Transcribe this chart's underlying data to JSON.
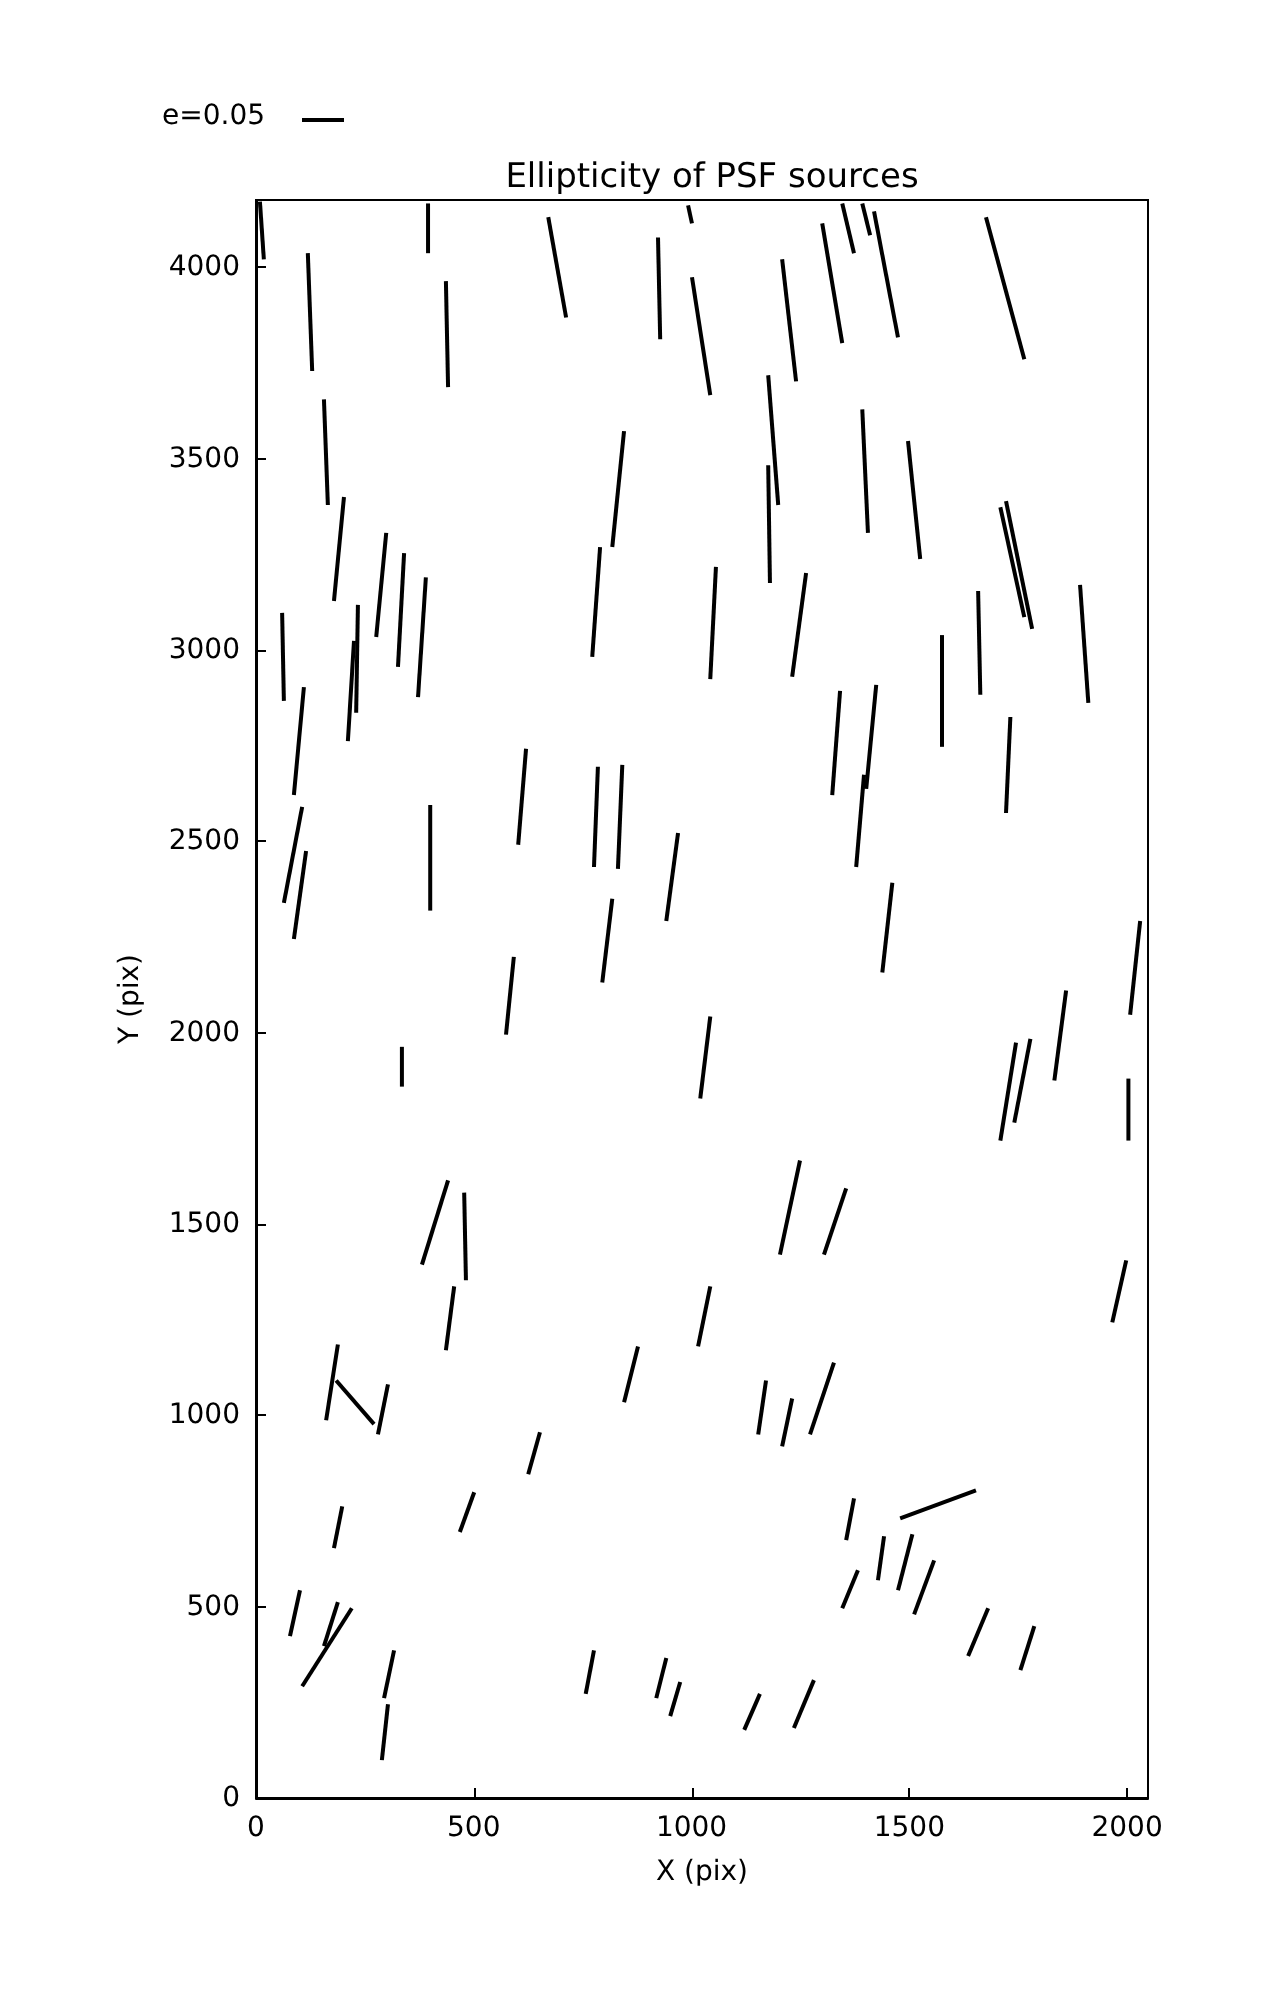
{
  "chart_data": {
    "type": "line",
    "title": "Ellipticity of PSF sources",
    "xlabel": "X (pix)",
    "ylabel": "Y (pix)",
    "annotations": [
      "e=0.05"
    ],
    "xlim": [
      0,
      2048
    ],
    "xticks": [
      0,
      500,
      1000,
      1500,
      2000
    ],
    "ylim": [
      0,
      4176
    ],
    "yticks": [
      0,
      500,
      1000,
      1500,
      2000,
      2500,
      3000,
      3500,
      4000
    ],
    "grid": false,
    "marker": "none",
    "line_style": "solid",
    "series": [
      {
        "color": "#000000",
        "x": [
          9,
          18
        ],
        "values": [
          4172,
          4021
        ]
      },
      {
        "color": "#000000",
        "x": [
          395,
          395
        ],
        "values": [
          4167,
          4037
        ]
      },
      {
        "color": "#000000",
        "x": [
          992,
          1001
        ],
        "values": [
          4162,
          4115
        ]
      },
      {
        "color": "#000000",
        "x": [
          671,
          712
        ],
        "values": [
          4131,
          3869
        ]
      },
      {
        "color": "#000000",
        "x": [
          923,
          928
        ],
        "values": [
          4078,
          3812
        ]
      },
      {
        "color": "#000000",
        "x": [
          1346,
          1373
        ],
        "values": [
          4167,
          4037
        ]
      },
      {
        "color": "#000000",
        "x": [
          1392,
          1410
        ],
        "values": [
          4167,
          4084
        ]
      },
      {
        "color": "#000000",
        "x": [
          1419,
          1474
        ],
        "values": [
          4146,
          3817
        ]
      },
      {
        "color": "#000000",
        "x": [
          1300,
          1346
        ],
        "values": [
          4115,
          3802
        ]
      },
      {
        "color": "#000000",
        "x": [
          1676,
          1764
        ],
        "values": [
          4131,
          3760
        ]
      },
      {
        "color": "#000000",
        "x": [
          119,
          129
        ],
        "values": [
          4037,
          3729
        ]
      },
      {
        "color": "#000000",
        "x": [
          436,
          441
        ],
        "values": [
          3964,
          3687
        ]
      },
      {
        "color": "#000000",
        "x": [
          1001,
          1043
        ],
        "values": [
          3974,
          3666
        ]
      },
      {
        "color": "#000000",
        "x": [
          1208,
          1240
        ],
        "values": [
          4021,
          3702
        ]
      },
      {
        "color": "#000000",
        "x": [
          156,
          165
        ],
        "values": [
          3655,
          3379
        ]
      },
      {
        "color": "#000000",
        "x": [
          1176,
          1199
        ],
        "values": [
          3718,
          3379
        ]
      },
      {
        "color": "#000000",
        "x": [
          1176,
          1180
        ],
        "values": [
          3483,
          3175
        ]
      },
      {
        "color": "#000000",
        "x": [
          1392,
          1405
        ],
        "values": [
          3629,
          3306
        ]
      },
      {
        "color": "#000000",
        "x": [
          1497,
          1525
        ],
        "values": [
          3546,
          3238
        ]
      },
      {
        "color": "#000000",
        "x": [
          845,
          818
        ],
        "values": [
          3572,
          3269
        ]
      },
      {
        "color": "#000000",
        "x": [
          202,
          179
        ],
        "values": [
          3400,
          3128
        ]
      },
      {
        "color": "#000000",
        "x": [
          299,
          276
        ],
        "values": [
          3306,
          3034
        ]
      },
      {
        "color": "#000000",
        "x": [
          340,
          326
        ],
        "values": [
          3253,
          2956
        ]
      },
      {
        "color": "#000000",
        "x": [
          390,
          372
        ],
        "values": [
          3190,
          2877
        ]
      },
      {
        "color": "#000000",
        "x": [
          1709,
          1764
        ],
        "values": [
          3373,
          3086
        ]
      },
      {
        "color": "#000000",
        "x": [
          1722,
          1782
        ],
        "values": [
          3389,
          3055
        ]
      },
      {
        "color": "#000000",
        "x": [
          790,
          772
        ],
        "values": [
          3269,
          2982
        ]
      },
      {
        "color": "#000000",
        "x": [
          60,
          64
        ],
        "values": [
          3097,
          2867
        ]
      },
      {
        "color": "#000000",
        "x": [
          234,
          230
        ],
        "values": [
          3118,
          2836
        ]
      },
      {
        "color": "#000000",
        "x": [
          225,
          211
        ],
        "values": [
          3024,
          2762
        ]
      },
      {
        "color": "#000000",
        "x": [
          1056,
          1043
        ],
        "values": [
          3217,
          2924
        ]
      },
      {
        "color": "#000000",
        "x": [
          1263,
          1231
        ],
        "values": [
          3201,
          2930
        ]
      },
      {
        "color": "#000000",
        "x": [
          1658,
          1663
        ],
        "values": [
          3154,
          2883
        ]
      },
      {
        "color": "#000000",
        "x": [
          1892,
          1911
        ],
        "values": [
          3170,
          2862
        ]
      },
      {
        "color": "#000000",
        "x": [
          1575,
          1575
        ],
        "values": [
          3039,
          2747
        ]
      },
      {
        "color": "#000000",
        "x": [
          110,
          87
        ],
        "values": [
          2903,
          2621
        ]
      },
      {
        "color": "#000000",
        "x": [
          1341,
          1323
        ],
        "values": [
          2893,
          2621
        ]
      },
      {
        "color": "#000000",
        "x": [
          1424,
          1401
        ],
        "values": [
          2909,
          2637
        ]
      },
      {
        "color": "#000000",
        "x": [
          1732,
          1722
        ],
        "values": [
          2825,
          2574
        ]
      },
      {
        "color": "#000000",
        "x": [
          106,
          64
        ],
        "values": [
          2590,
          2339
        ]
      },
      {
        "color": "#000000",
        "x": [
          115,
          87
        ],
        "values": [
          2475,
          2245
        ]
      },
      {
        "color": "#000000",
        "x": [
          400,
          400
        ],
        "values": [
          2595,
          2319
        ]
      },
      {
        "color": "#000000",
        "x": [
          620,
          602
        ],
        "values": [
          2742,
          2491
        ]
      },
      {
        "color": "#000000",
        "x": [
          785,
          776
        ],
        "values": [
          2695,
          2433
        ]
      },
      {
        "color": "#000000",
        "x": [
          841,
          831
        ],
        "values": [
          2700,
          2428
        ]
      },
      {
        "color": "#000000",
        "x": [
          969,
          942
        ],
        "values": [
          2522,
          2292
        ]
      },
      {
        "color": "#000000",
        "x": [
          1396,
          1378
        ],
        "values": [
          2674,
          2433
        ]
      },
      {
        "color": "#000000",
        "x": [
          1461,
          1438
        ],
        "values": [
          2392,
          2157
        ]
      },
      {
        "color": "#000000",
        "x": [
          818,
          795
        ],
        "values": [
          2350,
          2131
        ]
      },
      {
        "color": "#000000",
        "x": [
          592,
          574
        ],
        "values": [
          2198,
          1995
        ]
      },
      {
        "color": "#000000",
        "x": [
          335,
          335
        ],
        "values": [
          1963,
          1859
        ]
      },
      {
        "color": "#000000",
        "x": [
          1043,
          1020
        ],
        "values": [
          2042,
          1828
        ]
      },
      {
        "color": "#000000",
        "x": [
          1860,
          1833
        ],
        "values": [
          2110,
          1875
        ]
      },
      {
        "color": "#000000",
        "x": [
          1745,
          1709
        ],
        "values": [
          1974,
          1718
        ]
      },
      {
        "color": "#000000",
        "x": [
          1778,
          1741
        ],
        "values": [
          1984,
          1765
        ]
      },
      {
        "color": "#000000",
        "x": [
          2030,
          2007
        ],
        "values": [
          2292,
          2047
        ]
      },
      {
        "color": "#000000",
        "x": [
          2003,
          2003
        ],
        "values": [
          1880,
          1718
        ]
      },
      {
        "color": "#000000",
        "x": [
          441,
          381
        ],
        "values": [
          1614,
          1394
        ]
      },
      {
        "color": "#000000",
        "x": [
          478,
          482
        ],
        "values": [
          1582,
          1353
        ]
      },
      {
        "color": "#000000",
        "x": [
          1249,
          1203
        ],
        "values": [
          1666,
          1420
        ]
      },
      {
        "color": "#000000",
        "x": [
          1355,
          1304
        ],
        "values": [
          1593,
          1420
        ]
      },
      {
        "color": "#000000",
        "x": [
          1998,
          1966
        ],
        "values": [
          1405,
          1243
        ]
      },
      {
        "color": "#000000",
        "x": [
          455,
          436
        ],
        "values": [
          1337,
          1170
        ]
      },
      {
        "color": "#000000",
        "x": [
          188,
          161
        ],
        "values": [
          1185,
          987
        ]
      },
      {
        "color": "#000000",
        "x": [
          184,
          271
        ],
        "values": [
          1091,
          977
        ]
      },
      {
        "color": "#000000",
        "x": [
          303,
          280
        ],
        "values": [
          1081,
          950
        ]
      },
      {
        "color": "#000000",
        "x": [
          877,
          845
        ],
        "values": [
          1180,
          1034
        ]
      },
      {
        "color": "#000000",
        "x": [
          1043,
          1015
        ],
        "values": [
          1337,
          1180
        ]
      },
      {
        "color": "#000000",
        "x": [
          1171,
          1153
        ],
        "values": [
          1091,
          950
        ]
      },
      {
        "color": "#000000",
        "x": [
          1231,
          1208
        ],
        "values": [
          1044,
          919
        ]
      },
      {
        "color": "#000000",
        "x": [
          1327,
          1272
        ],
        "values": [
          1138,
          950
        ]
      },
      {
        "color": "#000000",
        "x": [
          652,
          625
        ],
        "values": [
          956,
          846
        ]
      },
      {
        "color": "#000000",
        "x": [
          501,
          468
        ],
        "values": [
          799,
          695
        ]
      },
      {
        "color": "#000000",
        "x": [
          198,
          179
        ],
        "values": [
          762,
          653
        ]
      },
      {
        "color": "#000000",
        "x": [
          1373,
          1355
        ],
        "values": [
          783,
          674
        ]
      },
      {
        "color": "#000000",
        "x": [
          1653,
          1479
        ],
        "values": [
          804,
          731
        ]
      },
      {
        "color": "#000000",
        "x": [
          1442,
          1428
        ],
        "values": [
          684,
          569
        ]
      },
      {
        "color": "#000000",
        "x": [
          1507,
          1474
        ],
        "values": [
          689,
          543
        ]
      },
      {
        "color": "#000000",
        "x": [
          1557,
          1511
        ],
        "values": [
          621,
          480
        ]
      },
      {
        "color": "#000000",
        "x": [
          1382,
          1346
        ],
        "values": [
          595,
          496
        ]
      },
      {
        "color": "#000000",
        "x": [
          1681,
          1635
        ],
        "values": [
          496,
          371
        ]
      },
      {
        "color": "#000000",
        "x": [
          1787,
          1755
        ],
        "values": [
          449,
          334
        ]
      },
      {
        "color": "#000000",
        "x": [
          101,
          78
        ],
        "values": [
          543,
          423
        ]
      },
      {
        "color": "#000000",
        "x": [
          188,
          156
        ],
        "values": [
          512,
          397
        ]
      },
      {
        "color": "#000000",
        "x": [
          220,
          106
        ],
        "values": [
          496,
          292
        ]
      },
      {
        "color": "#000000",
        "x": [
          317,
          294
        ],
        "values": [
          386,
          261
        ]
      },
      {
        "color": "#000000",
        "x": [
          303,
          289
        ],
        "values": [
          245,
          99
        ]
      },
      {
        "color": "#000000",
        "x": [
          776,
          757
        ],
        "values": [
          386,
          272
        ]
      },
      {
        "color": "#000000",
        "x": [
          942,
          919
        ],
        "values": [
          366,
          261
        ]
      },
      {
        "color": "#000000",
        "x": [
          974,
          951
        ],
        "values": [
          303,
          214
        ]
      },
      {
        "color": "#000000",
        "x": [
          1157,
          1121
        ],
        "values": [
          272,
          178
        ]
      },
      {
        "color": "#000000",
        "x": [
          1281,
          1235
        ],
        "values": [
          308,
          183
        ]
      }
    ]
  }
}
